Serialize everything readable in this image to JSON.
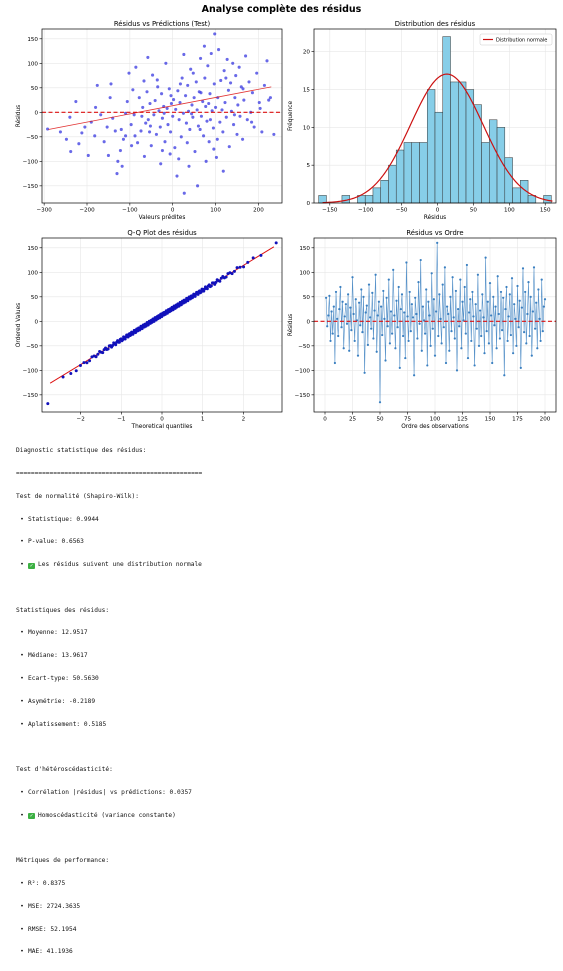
{
  "suptitle": "Analyse complète des résidus",
  "chart_data": [
    {
      "type": "scatter",
      "title": "Résidus vs Prédictions (Test)",
      "xlabel": "Valeurs prédites",
      "ylabel": "Résidus",
      "xlim": [
        -305,
        255
      ],
      "ylim": [
        -185,
        170
      ],
      "xticks": [
        -300,
        -200,
        -100,
        0,
        100,
        200
      ],
      "yticks": [
        -150,
        -100,
        -50,
        0,
        50,
        100,
        150
      ],
      "grid": true,
      "colors": {
        "points": "#2222dd",
        "zero_line": "#dd1111",
        "trend": "#dd1111"
      },
      "zero_line": 0,
      "trend": {
        "x": [
          -290,
          230
        ],
        "y": [
          -35,
          52
        ]
      },
      "points": [
        [
          -292,
          -34
        ],
        [
          -262,
          -40
        ],
        [
          -248,
          -55
        ],
        [
          -238,
          -80
        ],
        [
          -226,
          22
        ],
        [
          -219,
          -64
        ],
        [
          -212,
          -42
        ],
        [
          -205,
          -30
        ],
        [
          -197,
          -88
        ],
        [
          -190,
          -20
        ],
        [
          -182,
          -48
        ],
        [
          -176,
          55
        ],
        [
          -168,
          -5
        ],
        [
          -160,
          -60
        ],
        [
          -153,
          -30
        ],
        [
          -146,
          30
        ],
        [
          -140,
          -12
        ],
        [
          -134,
          -38
        ],
        [
          -128,
          -100
        ],
        [
          -122,
          -78
        ],
        [
          -118,
          -110
        ],
        [
          -115,
          -55
        ],
        [
          -110,
          -2
        ],
        [
          -106,
          22
        ],
        [
          -102,
          80
        ],
        [
          -97,
          -25
        ],
        [
          -93,
          46
        ],
        [
          -90,
          -5
        ],
        [
          -86,
          92
        ],
        [
          -82,
          -62
        ],
        [
          -78,
          30
        ],
        [
          -74,
          -38
        ],
        [
          -70,
          10
        ],
        [
          -67,
          64
        ],
        [
          -63,
          -22
        ],
        [
          -60,
          42
        ],
        [
          -57,
          -15
        ],
        [
          -53,
          18
        ],
        [
          -50,
          -68
        ],
        [
          -47,
          76
        ],
        [
          -44,
          -5
        ],
        [
          -41,
          24
        ],
        [
          -38,
          -45
        ],
        [
          -35,
          52
        ],
        [
          -32,
          3
        ],
        [
          -29,
          -30
        ],
        [
          -26,
          38
        ],
        [
          -24,
          -12
        ],
        [
          -21,
          12
        ],
        [
          -18,
          -60
        ],
        [
          -16,
          100
        ],
        [
          -13,
          8
        ],
        [
          -11,
          -25
        ],
        [
          -8,
          48
        ],
        [
          -5,
          -40
        ],
        [
          -3,
          18
        ],
        [
          0,
          -8
        ],
        [
          2,
          26
        ],
        [
          5,
          -72
        ],
        [
          7,
          6
        ],
        [
          10,
          -130
        ],
        [
          12,
          44
        ],
        [
          15,
          -15
        ],
        [
          17,
          20
        ],
        [
          20,
          -50
        ],
        [
          22,
          70
        ],
        [
          25,
          -2
        ],
        [
          27,
          -165
        ],
        [
          30,
          34
        ],
        [
          32,
          -22
        ],
        [
          35,
          55
        ],
        [
          37,
          2
        ],
        [
          40,
          -35
        ],
        [
          42,
          88
        ],
        [
          45,
          15
        ],
        [
          47,
          -10
        ],
        [
          50,
          30
        ],
        [
          52,
          -80
        ],
        [
          55,
          62
        ],
        [
          57,
          5
        ],
        [
          60,
          -28
        ],
        [
          62,
          42
        ],
        [
          65,
          110
        ],
        [
          67,
          -8
        ],
        [
          70,
          22
        ],
        [
          72,
          -48
        ],
        [
          75,
          70
        ],
        [
          77,
          12
        ],
        [
          80,
          -18
        ],
        [
          82,
          95
        ],
        [
          85,
          -60
        ],
        [
          87,
          38
        ],
        [
          90,
          120
        ],
        [
          92,
          3
        ],
        [
          95,
          -32
        ],
        [
          97,
          58
        ],
        [
          100,
          10
        ],
        [
          102,
          -92
        ],
        [
          105,
          30
        ],
        [
          107,
          128
        ],
        [
          110,
          -20
        ],
        [
          112,
          65
        ],
        [
          115,
          5
        ],
        [
          117,
          -40
        ],
        [
          120,
          85
        ],
        [
          122,
          20
        ],
        [
          125,
          -10
        ],
        [
          127,
          108
        ],
        [
          130,
          45
        ],
        [
          132,
          -70
        ],
        [
          135,
          60
        ],
        [
          137,
          2
        ],
        [
          140,
          100
        ],
        [
          142,
          -25
        ],
        [
          145,
          30
        ],
        [
          147,
          75
        ],
        [
          150,
          -45
        ],
        [
          152,
          15
        ],
        [
          155,
          92
        ],
        [
          157,
          -8
        ],
        [
          160,
          52
        ],
        [
          163,
          -55
        ],
        [
          166,
          25
        ],
        [
          170,
          115
        ],
        [
          174,
          -15
        ],
        [
          178,
          62
        ],
        [
          182,
          0
        ],
        [
          186,
          40
        ],
        [
          190,
          -30
        ],
        [
          196,
          80
        ],
        [
          202,
          20
        ],
        [
          208,
          -40
        ],
        [
          214,
          55
        ],
        [
          220,
          105
        ],
        [
          228,
          30
        ],
        [
          236,
          -45
        ],
        [
          -240,
          -10
        ],
        [
          -150,
          -88
        ],
        [
          -120,
          -35
        ],
        [
          -96,
          -68
        ],
        [
          -66,
          -90
        ],
        [
          -54,
          -40
        ],
        [
          -28,
          -105
        ],
        [
          -6,
          -85
        ],
        [
          14,
          -95
        ],
        [
          38,
          -110
        ],
        [
          58,
          -150
        ],
        [
          78,
          -100
        ],
        [
          96,
          -75
        ],
        [
          118,
          -120
        ],
        [
          -180,
          10
        ],
        [
          -144,
          58
        ],
        [
          -88,
          -48
        ],
        [
          -72,
          -8
        ],
        [
          -52,
          -28
        ],
        [
          -36,
          66
        ],
        [
          -20,
          -2
        ],
        [
          -4,
          34
        ],
        [
          18,
          58
        ],
        [
          34,
          -62
        ],
        [
          48,
          80
        ],
        [
          64,
          -35
        ],
        [
          84,
          18
        ],
        [
          104,
          -55
        ],
        [
          124,
          70
        ],
        [
          144,
          -5
        ],
        [
          164,
          48
        ],
        [
          184,
          -20
        ],
        [
          204,
          8
        ],
        [
          224,
          25
        ],
        [
          -58,
          112
        ],
        [
          26,
          118
        ],
        [
          74,
          135
        ],
        [
          98,
          160
        ],
        [
          -130,
          -125
        ],
        [
          -110,
          -48
        ],
        [
          -24,
          -78
        ],
        [
          44,
          -3
        ],
        [
          66,
          40
        ],
        [
          88,
          -15
        ]
      ]
    },
    {
      "type": "bar",
      "title": "Distribution des résidus",
      "xlabel": "Résidus",
      "ylabel": "Fréquence",
      "xlim": [
        -172,
        165
      ],
      "ylim": [
        0,
        23
      ],
      "xticks": [
        -150,
        -100,
        -50,
        0,
        50,
        100,
        150
      ],
      "yticks": [
        0,
        5,
        10,
        15,
        20
      ],
      "grid": true,
      "legend": {
        "label": "Distribution normale",
        "placement": "top-right"
      },
      "colors": {
        "bars": "#87cee8",
        "edges": "#333333",
        "curve": "#cc1111"
      },
      "bin_start": -165.5,
      "bin_width": 10.8,
      "counts": [
        1,
        0,
        0,
        1,
        0,
        1,
        1,
        2,
        3,
        5,
        7,
        8,
        8,
        8,
        15,
        12,
        22,
        16,
        16,
        15,
        13,
        8,
        11,
        10,
        6,
        2,
        3,
        1,
        0,
        1
      ],
      "normal_curve": {
        "mean": 12.95,
        "std": 50.56,
        "n": 200
      }
    },
    {
      "type": "scatter",
      "title": "Q-Q Plot des résidus",
      "xlabel": "Theoretical quantiles",
      "ylabel": "Ordered Values",
      "xlim": [
        -2.95,
        2.95
      ],
      "ylim": [
        -185,
        170
      ],
      "xticks": [
        -2,
        -1,
        0,
        1,
        2
      ],
      "yticks": [
        -150,
        -100,
        -50,
        0,
        50,
        100,
        150
      ],
      "grid": true,
      "colors": {
        "points": "#1111bb",
        "line": "#dd1111"
      },
      "fit_line": {
        "slope": 50.6,
        "intercept": 12.95
      },
      "n": 200,
      "extremes": {
        "low": [
          -2.75,
          -168
        ],
        "high": [
          2.75,
          160
        ]
      }
    },
    {
      "type": "line",
      "title": "Résidus vs Ordre",
      "xlabel": "Ordre des observations",
      "ylabel": "Résidus",
      "xlim": [
        -10,
        210
      ],
      "ylim": [
        -185,
        170
      ],
      "xticks": [
        0,
        25,
        50,
        75,
        100,
        125,
        150,
        175,
        200
      ],
      "yticks": [
        -150,
        -100,
        -50,
        0,
        50,
        100,
        150
      ],
      "grid": true,
      "colors": {
        "line": "#3a7fc0",
        "zero_line": "#dd1111"
      },
      "zero_line": 0,
      "values": [
        48,
        -10,
        12,
        52,
        -40,
        20,
        -25,
        30,
        -85,
        60,
        5,
        -30,
        25,
        70,
        -12,
        40,
        -55,
        10,
        35,
        -5,
        55,
        -60,
        28,
        -18,
        90,
        15,
        -40,
        45,
        2,
        -70,
        38,
        -8,
        65,
        -22,
        50,
        -105,
        18,
        32,
        -48,
        75,
        8,
        -15,
        58,
        -35,
        22,
        95,
        -62,
        12,
        40,
        -165,
        30,
        -28,
        62,
        5,
        -80,
        48,
        -10,
        85,
        -45,
        20,
        -25,
        105,
        12,
        -55,
        42,
        -12,
        70,
        -95,
        25,
        55,
        -30,
        18,
        -75,
        120,
        10,
        -40,
        60,
        -20,
        35,
        8,
        -110,
        48,
        15,
        -35,
        80,
        -5,
        125,
        -60,
        30,
        2,
        -25,
        65,
        -90,
        40,
        12,
        -50,
        98,
        -15,
        45,
        -70,
        20,
        160,
        -30,
        55,
        5,
        -45,
        75,
        -12,
        110,
        -85,
        30,
        15,
        -60,
        50,
        -20,
        90,
        8,
        -35,
        62,
        -100,
        25,
        -10,
        85,
        -55,
        40,
        2,
        70,
        -25,
        115,
        -75,
        18,
        45,
        -40,
        60,
        10,
        -90,
        35,
        -15,
        95,
        -50,
        22,
        -30,
        55,
        8,
        -65,
        130,
        -20,
        40,
        -45,
        78,
        12,
        -85,
        50,
        -8,
        30,
        -55,
        92,
        15,
        -35,
        60,
        -18,
        48,
        -110,
        25,
        70,
        -40,
        10,
        55,
        -28,
        88,
        -65,
        35,
        5,
        -50,
        72,
        -12,
        42,
        -95,
        28,
        108,
        -22,
        60,
        -45,
        15,
        80,
        -30,
        50,
        -70,
        20,
        110,
        -15,
        38,
        -55,
        65,
        5,
        -40,
        85,
        -20,
        30,
        45
      ]
    }
  ],
  "report": {
    "title": "Diagnostic statistique des résidus:",
    "separator": "==================================================",
    "normality_heading": "Test de normalité (Shapiro-Wilk):",
    "normality_items": [
      "Statistique: 0.9944",
      "P-value: 0.6563"
    ],
    "normality_check": "Les résidus suivent une distribution normale",
    "stats_heading": "Statistiques des résidus:",
    "stats_items": [
      "Moyenne: 12.9517",
      "Médiane: 13.9617",
      "Ecart-type: 50.5630",
      "Asymétrie: -0.2189",
      "Aplatissement: 0.5185"
    ],
    "hetero_heading": "Test d'hétéroscédasticité:",
    "hetero_items": [
      "Corrélation |résidus| vs prédictions: 0.0357"
    ],
    "hetero_check": "Homoscédasticité (variance constante)",
    "perf_heading": "Métriques de performance:",
    "perf_items": [
      "R²: 0.8375",
      "MSE: 2724.3635",
      "RMSE: 52.1954",
      "MAE: 41.1936"
    ],
    "bullet": "•",
    "checkmark": "✓"
  }
}
